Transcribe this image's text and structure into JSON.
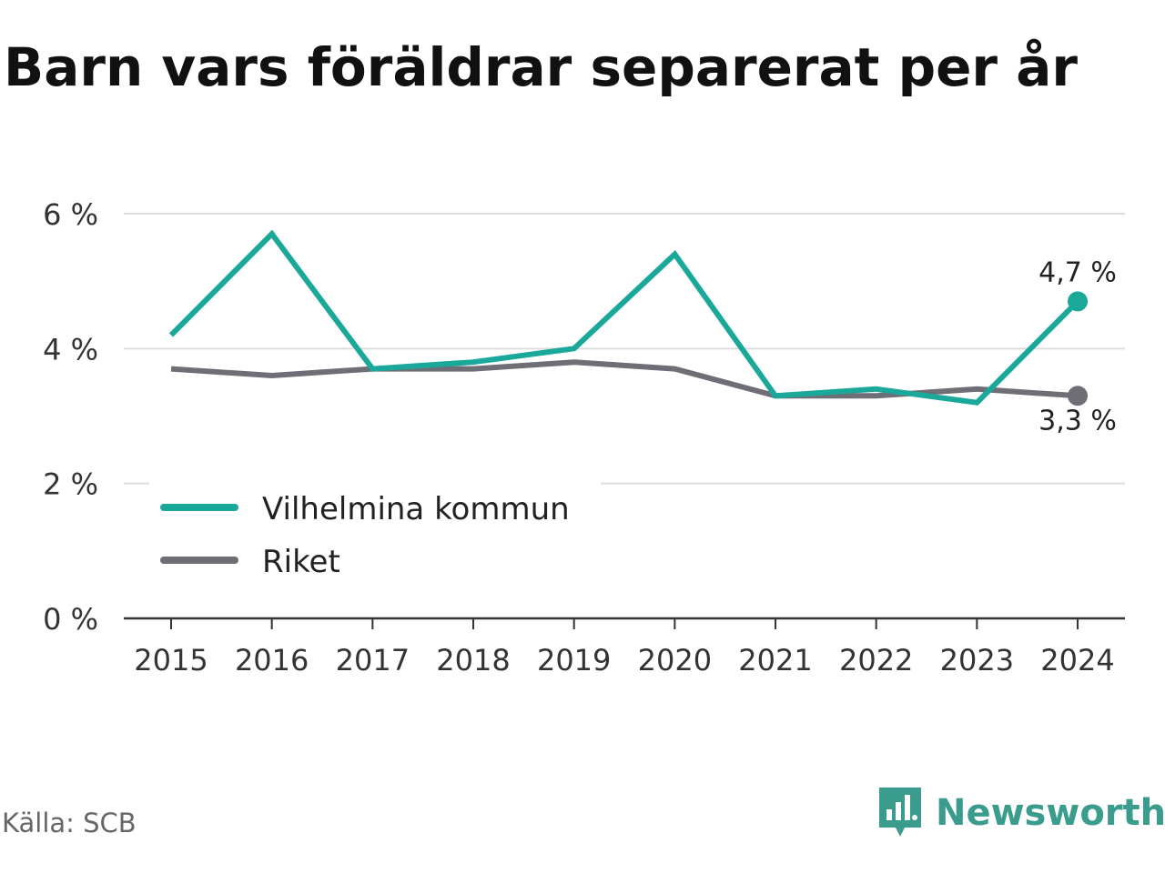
{
  "chart_data": {
    "type": "line",
    "title": "Barn vars föräldrar separerat per år",
    "categories": [
      "2015",
      "2016",
      "2017",
      "2018",
      "2019",
      "2020",
      "2021",
      "2022",
      "2023",
      "2024"
    ],
    "series": [
      {
        "name": "Vilhelmina kommun",
        "color": "#1aa89a",
        "values": [
          4.2,
          5.7,
          3.7,
          3.8,
          4.0,
          5.4,
          3.3,
          3.4,
          3.2,
          4.7
        ]
      },
      {
        "name": "Riket",
        "color": "#6e6e76",
        "values": [
          3.7,
          3.6,
          3.7,
          3.7,
          3.8,
          3.7,
          3.3,
          3.3,
          3.4,
          3.3
        ]
      }
    ],
    "yticks": [
      "0 %",
      "2 %",
      "4 %",
      "6 %"
    ],
    "ytick_values": [
      0,
      2,
      4,
      6
    ],
    "ylim": [
      0,
      6
    ],
    "grid": true,
    "legend_placement": "bottom-left",
    "end_labels": [
      "4,7 %",
      "3,3 %"
    ]
  },
  "source": "Källa: SCB",
  "logo_text": "Newsworthy"
}
